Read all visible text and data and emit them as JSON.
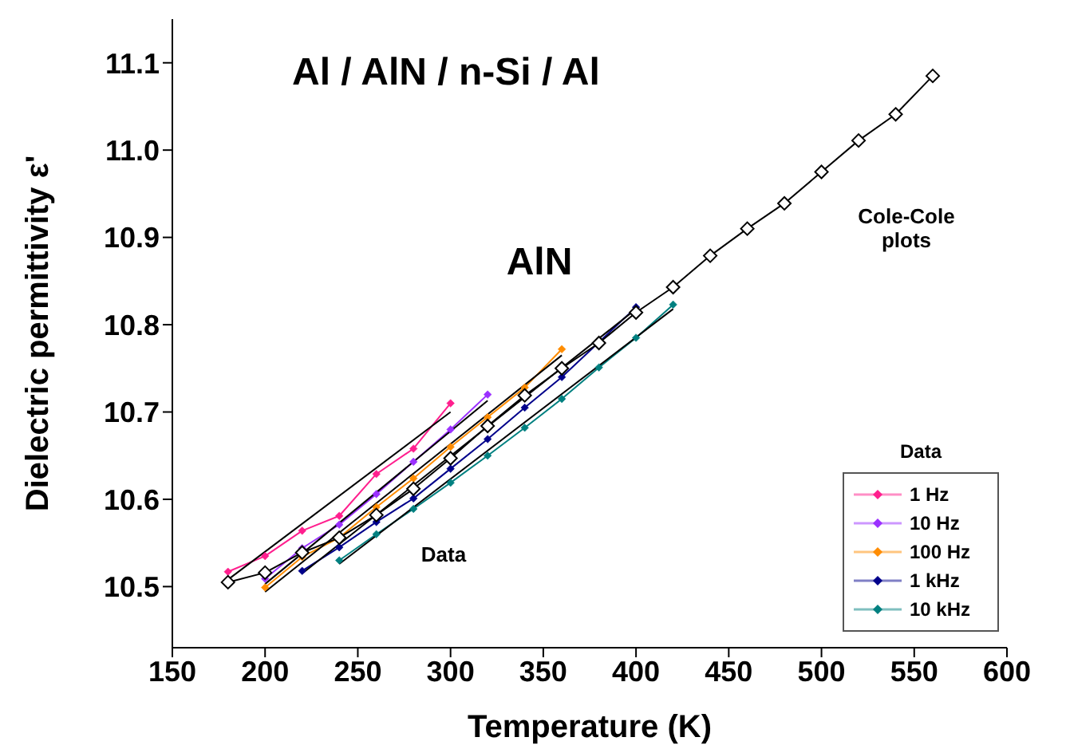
{
  "chart_data": {
    "type": "line",
    "title": "Al / AlN / n-Si / Al",
    "xlabel": "Temperature (K)",
    "ylabel": "Dielectric permittivity ε'",
    "legend_title": "Data",
    "legend": "bottom right",
    "marker": "diamond",
    "xlim": [
      150,
      600
    ],
    "xticks": [
      150,
      200,
      250,
      300,
      350,
      400,
      450,
      500,
      550,
      600
    ],
    "ylim": [
      10.43,
      11.15
    ],
    "yticks": [
      10.5,
      10.6,
      10.7,
      10.8,
      10.9,
      {
        "value": 11,
        "label": "11.0"
      },
      11.1
    ],
    "annotations": [
      "AlN",
      "Data",
      "Cole-Cole plots"
    ],
    "series": [
      {
        "name": "1 Hz",
        "color": "#ff1f8e",
        "x": [
          180,
          200,
          220,
          240,
          260,
          280,
          300
        ],
        "values": [
          10.517,
          10.535,
          10.564,
          10.581,
          10.629,
          10.658,
          10.71
        ]
      },
      {
        "name": "10 Hz",
        "color": "#9b30ff",
        "x": [
          200,
          220,
          240,
          260,
          280,
          300,
          320
        ],
        "values": [
          10.509,
          10.544,
          10.571,
          10.606,
          10.643,
          10.68,
          10.72
        ]
      },
      {
        "name": "100 Hz",
        "color": "#ff8c00",
        "x": [
          200,
          220,
          240,
          260,
          280,
          300,
          320,
          340,
          360
        ],
        "values": [
          10.499,
          10.534,
          10.556,
          10.591,
          10.624,
          10.66,
          10.694,
          10.728,
          10.772
        ]
      },
      {
        "name": "1 kHz",
        "color": "#00008b",
        "x": [
          220,
          240,
          260,
          280,
          300,
          320,
          340,
          360,
          380,
          400
        ],
        "values": [
          10.518,
          10.545,
          10.574,
          10.601,
          10.635,
          10.669,
          10.705,
          10.74,
          10.78,
          10.82
        ]
      },
      {
        "name": "10 kHz",
        "color": "#008080",
        "x": [
          240,
          260,
          280,
          300,
          320,
          340,
          360,
          380,
          400,
          420
        ],
        "values": [
          10.53,
          10.56,
          10.589,
          10.619,
          10.65,
          10.682,
          10.715,
          10.751,
          10.785,
          10.823
        ]
      },
      {
        "color": "#000000",
        "x": [
          180,
          200,
          220,
          240,
          260,
          280,
          300,
          320,
          340,
          360,
          380,
          400,
          420,
          440,
          460,
          480,
          500,
          520,
          540,
          560
        ],
        "values": [
          10.505,
          10.516,
          10.539,
          10.556,
          10.582,
          10.612,
          10.647,
          10.684,
          10.719,
          10.75,
          10.779,
          10.814,
          10.843,
          10.879,
          10.91,
          10.939,
          10.975,
          11.011,
          11.041,
          11.085
        ]
      },
      {
        "color": "#000000",
        "marker": "none",
        "x": [
          180,
          300
        ],
        "values": [
          10.508,
          10.7
        ]
      },
      {
        "color": "#000000",
        "marker": "none",
        "x": [
          200,
          320
        ],
        "values": [
          10.503,
          10.713
        ]
      },
      {
        "color": "#000000",
        "marker": "none",
        "x": [
          200,
          360
        ],
        "values": [
          10.494,
          10.765
        ]
      },
      {
        "color": "#000000",
        "marker": "none",
        "x": [
          220,
          400
        ],
        "values": [
          10.515,
          10.818
        ]
      },
      {
        "color": "#000000",
        "marker": "none",
        "x": [
          240,
          420
        ],
        "values": [
          10.526,
          10.818
        ]
      }
    ]
  }
}
